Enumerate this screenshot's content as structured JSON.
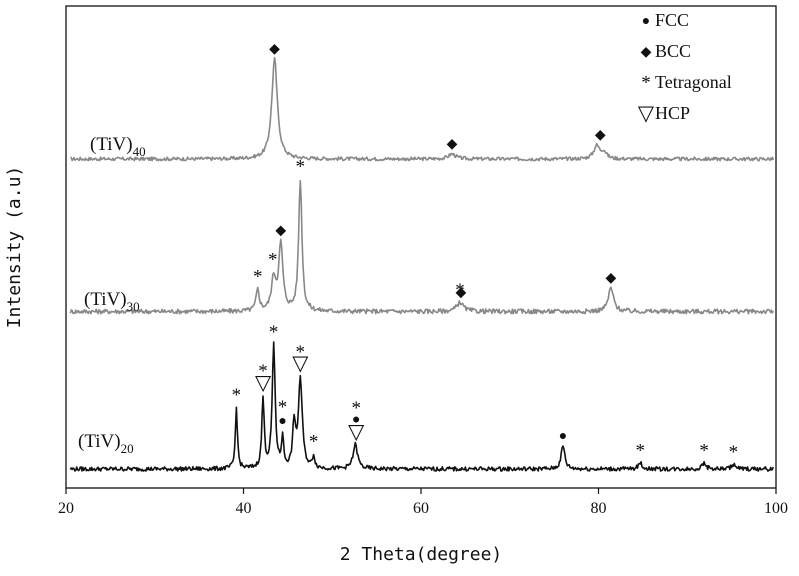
{
  "chart_data": {
    "type": "line",
    "title": "",
    "xlabel": "2 Theta(degree)",
    "ylabel": "Intensity (a.u)",
    "xlim": [
      20,
      100
    ],
    "xticks": [
      20,
      40,
      60,
      80,
      100
    ],
    "y_tick_labels": false,
    "legend_position": "top-right",
    "legend": [
      {
        "symbol": "●",
        "label": "FCC"
      },
      {
        "symbol": "◆",
        "label": "BCC"
      },
      {
        "symbol": "*",
        "label": "Tetragonal"
      },
      {
        "symbol": "▽",
        "label": "HCP"
      }
    ],
    "series": [
      {
        "name_base": "(TiV)",
        "name_sub": "40",
        "color": "#888888",
        "baseline": 0.09,
        "scale": 0.8,
        "peaks": [
          [
            43.5,
            1.0,
            0.38
          ],
          [
            63.5,
            0.05,
            0.5
          ],
          [
            79.8,
            0.13,
            0.4
          ],
          [
            80.6,
            0.07,
            0.35
          ]
        ],
        "markers": [
          {
            "x": 43.5,
            "symbol": "◆"
          },
          {
            "x": 63.5,
            "symbol": "◆"
          },
          {
            "x": 80.2,
            "symbol": "◆"
          }
        ]
      },
      {
        "name_base": "(TiV)",
        "name_sub": "30",
        "color": "#888888",
        "baseline": 0.08,
        "scale": 1.05,
        "peaks": [
          [
            41.6,
            0.16,
            0.22
          ],
          [
            43.4,
            0.24,
            0.3
          ],
          [
            44.2,
            0.5,
            0.28
          ],
          [
            46.4,
            1.0,
            0.22
          ],
          [
            64.4,
            0.07,
            0.45
          ],
          [
            81.4,
            0.18,
            0.35
          ]
        ],
        "markers": [
          {
            "x": 41.6,
            "symbol": "*"
          },
          {
            "x": 43.3,
            "symbol": "*"
          },
          {
            "x": 44.2,
            "symbol": "◆"
          },
          {
            "x": 46.4,
            "symbol": "*"
          },
          {
            "x": 64.5,
            "symbol": "◆"
          },
          {
            "x": 64.4,
            "symbol": "*"
          },
          {
            "x": 81.4,
            "symbol": "◆"
          }
        ]
      },
      {
        "name_base": "(TiV)",
        "name_sub": "20",
        "color": "#111111",
        "baseline": 0.09,
        "scale": 1.0,
        "peaks": [
          [
            39.2,
            0.5,
            0.14
          ],
          [
            42.2,
            0.57,
            0.16
          ],
          [
            43.4,
            1.0,
            0.2
          ],
          [
            44.4,
            0.25,
            0.14
          ],
          [
            45.7,
            0.36,
            0.18
          ],
          [
            46.4,
            0.73,
            0.26
          ],
          [
            47.9,
            0.1,
            0.15
          ],
          [
            52.6,
            0.2,
            0.3
          ],
          [
            76.0,
            0.19,
            0.25
          ],
          [
            84.7,
            0.05,
            0.25
          ],
          [
            91.9,
            0.05,
            0.25
          ],
          [
            95.2,
            0.04,
            0.25
          ]
        ],
        "markers": [
          {
            "x": 39.2,
            "symbol": "*"
          },
          {
            "x": 42.2,
            "symbol": "▽"
          },
          {
            "x": 42.2,
            "symbol": "*"
          },
          {
            "x": 43.4,
            "symbol": "*"
          },
          {
            "x": 44.4,
            "symbol": "●"
          },
          {
            "x": 44.4,
            "symbol": "*"
          },
          {
            "x": 46.4,
            "symbol": "▽"
          },
          {
            "x": 46.4,
            "symbol": "*"
          },
          {
            "x": 47.9,
            "symbol": "*"
          },
          {
            "x": 52.7,
            "symbol": "▽"
          },
          {
            "x": 52.7,
            "symbol": "●"
          },
          {
            "x": 52.7,
            "symbol": "*"
          },
          {
            "x": 76.0,
            "symbol": "●"
          },
          {
            "x": 84.7,
            "symbol": "*"
          },
          {
            "x": 91.9,
            "symbol": "*"
          },
          {
            "x": 95.2,
            "symbol": "*"
          }
        ]
      }
    ]
  }
}
